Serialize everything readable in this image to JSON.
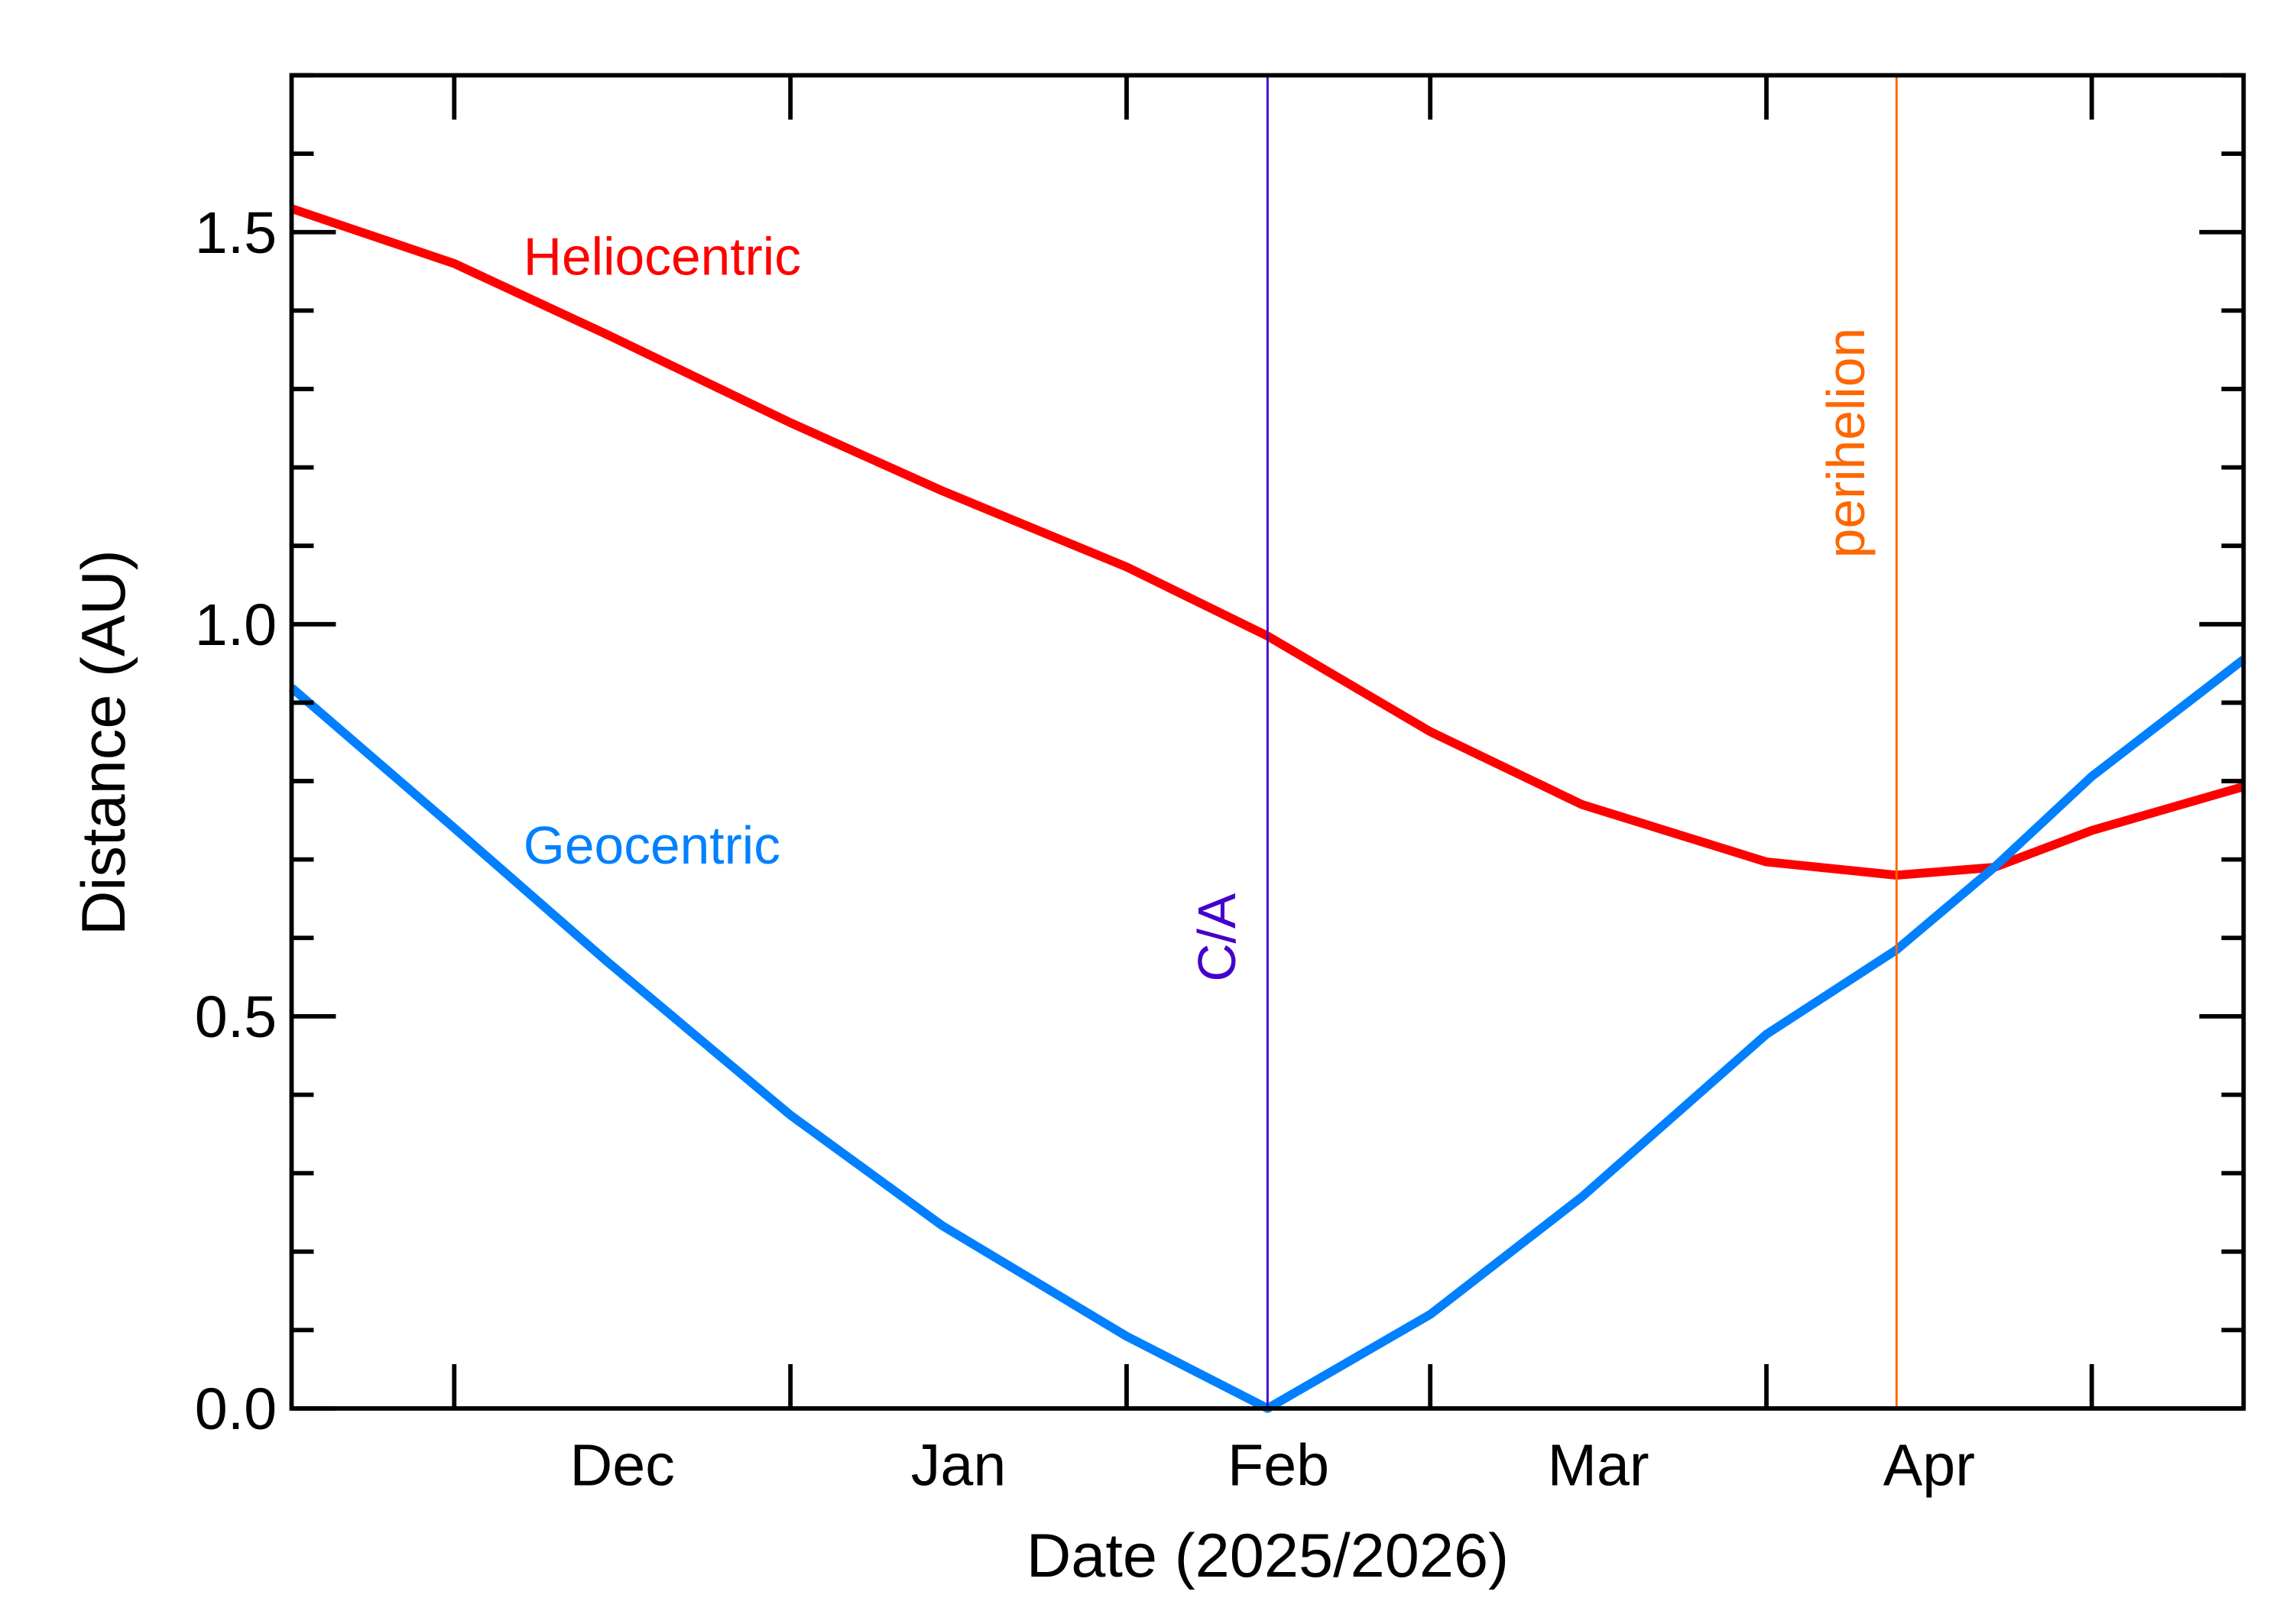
{
  "chart_data": {
    "type": "line",
    "xlabel": "Date (2025/2026)",
    "ylabel": "Distance (AU)",
    "xlim": [
      "2025-11-16",
      "2026-05-15"
    ],
    "ylim": [
      0.0,
      1.7
    ],
    "x_ticks": [
      {
        "date": "2025-12-01",
        "label": "Dec"
      },
      {
        "date": "2026-01-01",
        "label": "Jan"
      },
      {
        "date": "2026-02-01",
        "label": "Feb"
      },
      {
        "date": "2026-03-01",
        "label": "Mar"
      },
      {
        "date": "2026-04-01",
        "label": "Apr"
      },
      {
        "date": "2026-05-01",
        "label": ""
      }
    ],
    "y_ticks": [
      {
        "value": 0.0,
        "label": "0.0"
      },
      {
        "value": 0.5,
        "label": "0.5"
      },
      {
        "value": 1.0,
        "label": "1.0"
      },
      {
        "value": 1.5,
        "label": "1.5"
      }
    ],
    "grid": false,
    "series": [
      {
        "name": "Heliocentric",
        "color": "#ff0000",
        "x": [
          "2025-11-16",
          "2025-12-01",
          "2025-12-15",
          "2026-01-01",
          "2026-01-15",
          "2026-02-01",
          "2026-02-14",
          "2026-03-01",
          "2026-03-15",
          "2026-04-01",
          "2026-04-13",
          "2026-04-22",
          "2026-05-01",
          "2026-05-15"
        ],
        "y": [
          1.53,
          1.46,
          1.37,
          1.257,
          1.17,
          1.073,
          0.985,
          0.863,
          0.77,
          0.697,
          0.68,
          0.69,
          0.737,
          0.793
        ]
      },
      {
        "name": "Geocentric",
        "color": "#0080ff",
        "x": [
          "2025-11-16",
          "2025-12-01",
          "2025-12-15",
          "2026-01-01",
          "2026-01-15",
          "2026-02-01",
          "2026-02-14",
          "2026-03-01",
          "2026-03-15",
          "2026-04-01",
          "2026-04-13",
          "2026-04-22",
          "2026-05-01",
          "2026-05-15"
        ],
        "y": [
          0.919,
          0.74,
          0.571,
          0.374,
          0.233,
          0.092,
          0.0,
          0.12,
          0.27,
          0.477,
          0.585,
          0.69,
          0.806,
          0.955
        ]
      }
    ],
    "annotations": [
      {
        "label": "C/A",
        "date": "2026-02-14",
        "color": "#4400cc"
      },
      {
        "label": "perihelion",
        "date": "2026-04-13",
        "color": "#ff6600"
      }
    ]
  }
}
